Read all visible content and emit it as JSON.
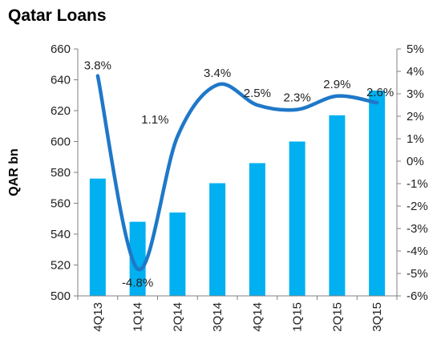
{
  "chart_data": {
    "type": "bar",
    "title": "Qatar Loans",
    "ylabel": "QAR bn",
    "ylim": [
      500,
      660
    ],
    "y_ticks": [
      500,
      520,
      540,
      560,
      580,
      600,
      620,
      640,
      660
    ],
    "y2lim": [
      -6,
      5
    ],
    "y2_ticks": [
      "-6%",
      "-5%",
      "-4%",
      "-3%",
      "-2%",
      "-1%",
      "0%",
      "1%",
      "2%",
      "3%",
      "4%",
      "5%"
    ],
    "categories": [
      "4Q13",
      "1Q14",
      "2Q14",
      "3Q14",
      "4Q14",
      "1Q15",
      "2Q15",
      "3Q15"
    ],
    "series": [
      {
        "type": "bar",
        "axis": "left",
        "values": [
          576,
          548,
          554,
          573,
          586,
          600,
          617,
          633
        ]
      },
      {
        "type": "line",
        "axis": "right",
        "smooth": true,
        "values": [
          3.8,
          -4.8,
          1.1,
          3.4,
          2.5,
          2.3,
          2.9,
          2.6
        ],
        "labels": [
          "3.8%",
          "-4.8%",
          "1.1%",
          "3.4%",
          "2.5%",
          "2.3%",
          "2.9%",
          "2.6%"
        ]
      }
    ],
    "colors": {
      "bar": "#00B0F0",
      "line": "#1F78C8",
      "axis": "#808080"
    },
    "grid": false,
    "legend": "none"
  }
}
